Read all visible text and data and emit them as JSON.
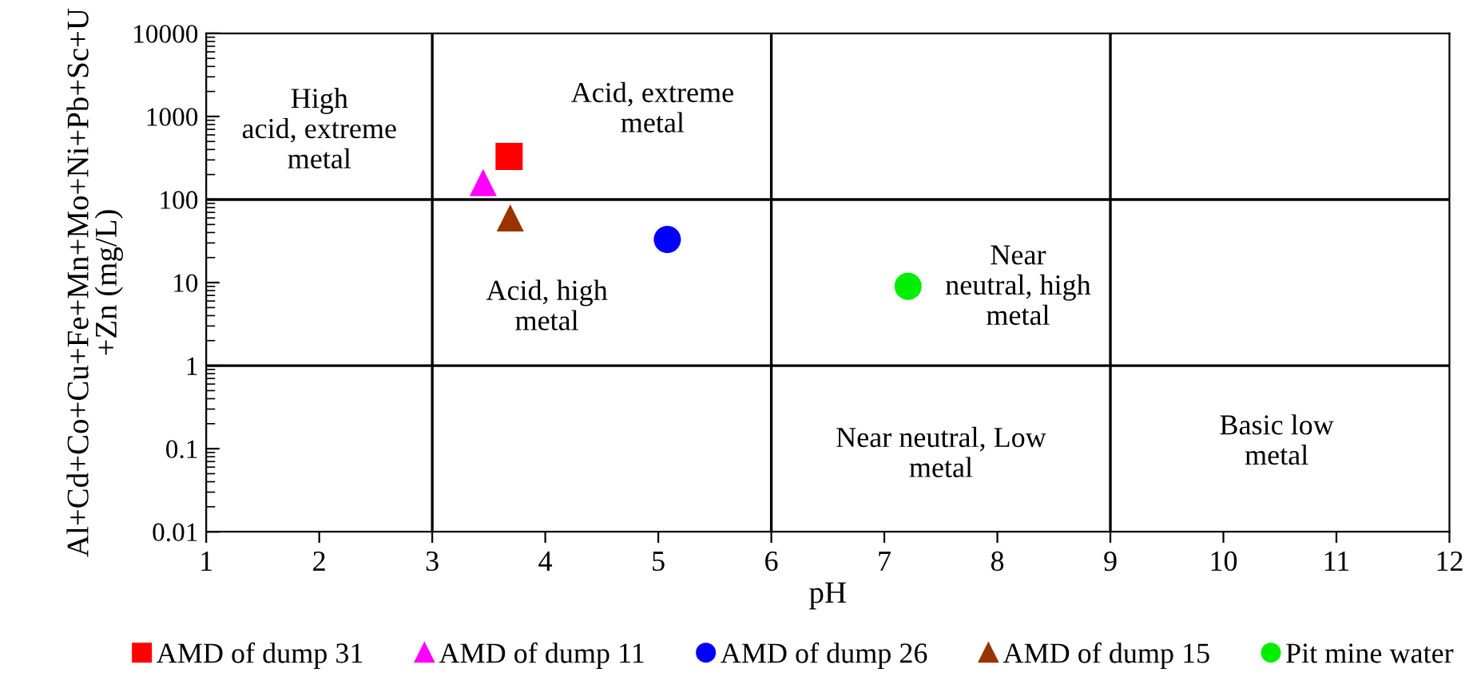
{
  "chart_data": {
    "type": "scatter",
    "xlabel": "pH",
    "ylabel": "Al+Cd+Co+Cu+Fe+Mn+Mo+Ni+Pb+Sc+U\n+Zn (mg/L)",
    "log": "y",
    "xlim": [
      1,
      12
    ],
    "xticks": [
      1,
      2,
      3,
      4,
      5,
      6,
      7,
      8,
      9,
      10,
      11,
      12
    ],
    "ylim": [
      0.01,
      10000
    ],
    "yticks": [
      0.01,
      0.1,
      1,
      10,
      100,
      1000,
      10000
    ],
    "grid": false,
    "legend": "bottom",
    "series": [
      {
        "name": "AMD of dump 31",
        "color": "#ff0000",
        "marker": "square",
        "x": [
          3.68
        ],
        "values": [
          330
        ]
      },
      {
        "name": "AMD of dump 11",
        "color": "#ff00ff",
        "marker": "triangle",
        "x": [
          3.45
        ],
        "values": [
          160
        ]
      },
      {
        "name": "AMD of dump 26",
        "color": "#0000ff",
        "marker": "circle",
        "x": [
          5.08
        ],
        "values": [
          33
        ]
      },
      {
        "name": "AMD of dump 15",
        "color": "#993300",
        "marker": "triangle",
        "x": [
          3.69
        ],
        "values": [
          60
        ]
      },
      {
        "name": "Pit mine water",
        "color": "#00ee00",
        "marker": "circle",
        "x": [
          7.21
        ],
        "values": [
          9
        ]
      }
    ],
    "ref_lines": [
      {
        "axis": "x",
        "value": 3,
        "label": null
      },
      {
        "axis": "x",
        "value": 6,
        "label": null
      },
      {
        "axis": "x",
        "value": 9,
        "label": null
      },
      {
        "axis": "y",
        "value": 1,
        "label": null
      },
      {
        "axis": "y",
        "value": 100,
        "label": null
      }
    ],
    "annotations": [
      "High\nacid, extreme\nmetal",
      "Acid, extreme\nmetal",
      "Acid, high\nmetal",
      "Near\nneutral, high\nmetal",
      "Near neutral, Low\nmetal",
      "Basic low\nmetal"
    ]
  }
}
